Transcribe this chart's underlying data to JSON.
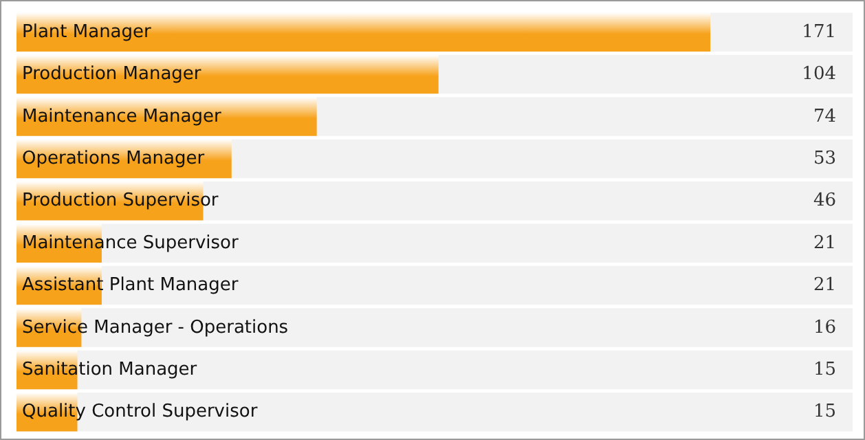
{
  "chart_data": {
    "type": "bar",
    "orientation": "horizontal",
    "categories": [
      "Plant Manager",
      "Production Manager",
      "Maintenance Manager",
      "Operations Manager",
      "Production Supervisor",
      "Maintenance Supervisor",
      "Assistant Plant Manager",
      "Service Manager - Operations",
      "Sanitation Manager",
      "Quality Control Supervisor"
    ],
    "values": [
      171,
      104,
      74,
      53,
      46,
      21,
      21,
      16,
      15,
      15
    ],
    "color": "#f7a21b",
    "data_labels": true
  }
}
